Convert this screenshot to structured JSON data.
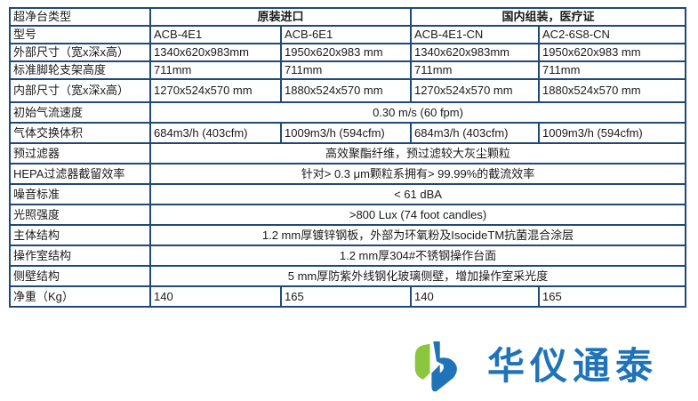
{
  "table": {
    "header": {
      "label": "超净台类型",
      "group1": "原装进口",
      "group2": "国内组装，医疗证"
    },
    "rows": [
      {
        "label": "型号",
        "cells": [
          "ACB-4E1",
          "ACB-6E1",
          "ACB-4E1-CN",
          "AC2-6S8-CN"
        ]
      },
      {
        "label": "外部尺寸（宽x深x高）",
        "cells": [
          "1340x620x983mm",
          "1950x620x983 mm",
          "1340x620x983mm",
          "1950x620x983 mm"
        ]
      },
      {
        "label": "标准脚轮支架高度",
        "cells": [
          "711mm",
          "711mm",
          "711mm",
          "711mm"
        ]
      },
      {
        "label": "内部尺寸（宽x深x高）",
        "cells": [
          "1270x524x570 mm",
          "1880x524x570 mm",
          "1270x524x570 mm",
          "1880x524x570 mm"
        ]
      },
      {
        "label": "初始气流速度",
        "span": "0.30 m/s (60 fpm)"
      },
      {
        "label": "气体交换体积",
        "cells": [
          "684m3/h (403cfm)",
          "1009m3/h (594cfm)",
          "684m3/h (403cfm)",
          "1009m3/h (594cfm)"
        ]
      },
      {
        "label": "预过滤器",
        "span": "高效聚酯纤维，预过滤较大灰尘颗粒"
      },
      {
        "label": "HEPA过滤器截留效率",
        "span": "针对> 0.3 μm颗粒系拥有> 99.99%的截流效率"
      },
      {
        "label": "噪音标准",
        "span": "< 61 dBA"
      },
      {
        "label": "光照强度",
        "span": ">800 Lux (74 foot candles)"
      },
      {
        "label": "主体结构",
        "span": "1.2 mm厚镀锌钢板，外部为环氧粉及IsocideTM抗菌混合涂层"
      },
      {
        "label": "操作室结构",
        "span": "1.2 mm厚304#不锈钢操作台面"
      },
      {
        "label": "侧壁结构",
        "span": "5 mm厚防紫外线钢化玻璃侧壁，增加操作室采光度"
      },
      {
        "label": "净重（Kg）",
        "cells": [
          "140",
          "165",
          "140",
          "165"
        ]
      }
    ]
  },
  "logo": {
    "text": "华仪通泰",
    "colors": {
      "green": "#8cc63f",
      "blue": "#1f73b8"
    }
  }
}
